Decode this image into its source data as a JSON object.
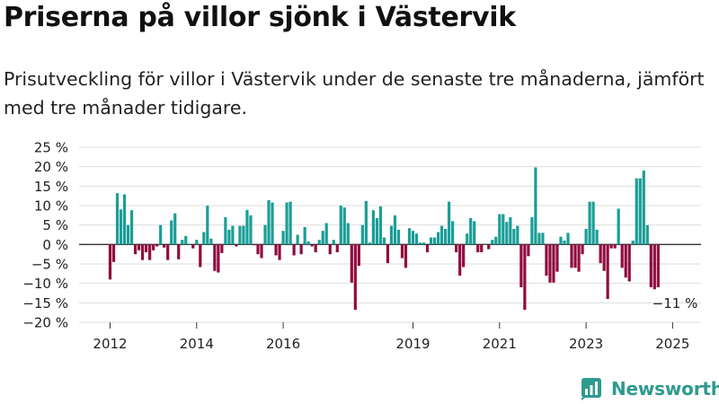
{
  "title": "Priserna på villor sjönk i Västervik",
  "subtitle": "Prisutveckling för villor i Västervik under de senaste tre månaderna, jämfört med tre månader tidigare.",
  "brand": "Newsworthy",
  "colors": {
    "positive": "#1a9e97",
    "negative": "#900c3f",
    "grid": "#dddddd",
    "zero_line": "#333333",
    "brand": "#2f9a8e"
  },
  "chart_data": {
    "type": "bar",
    "ylim": [
      -20,
      25
    ],
    "yticks": [
      25,
      20,
      15,
      10,
      5,
      0,
      -5,
      -10,
      -15,
      -20
    ],
    "ytick_labels": [
      "25 %",
      "20 %",
      "15 %",
      "10 %",
      "5 %",
      "0 %",
      "−5 %",
      "−10 %",
      "−15 %",
      "−20 %"
    ],
    "xticks": [
      2012,
      2014,
      2016,
      2019,
      2021,
      2023,
      2025
    ],
    "xtick_labels": [
      "2012",
      "2014",
      "2016",
      "2019",
      "2021",
      "2023",
      "2025"
    ],
    "grid": true,
    "start": "2012-01",
    "annotation": {
      "text": "−11 %",
      "x": "2025-01",
      "value": -11
    },
    "values": [
      -9,
      -4.5,
      13.2,
      9,
      12.9,
      5,
      8.8,
      -2.5,
      -1.5,
      -4,
      -2,
      -4,
      -1.5,
      -0.5,
      5,
      -0.8,
      -4,
      6.2,
      8,
      -3.8,
      1.2,
      2.2,
      0.2,
      -1,
      1.2,
      -5.8,
      3.2,
      10,
      1.5,
      -6.8,
      -7.2,
      -2.2,
      7,
      3.8,
      4.8,
      -0.5,
      4.8,
      4.8,
      8.9,
      7.5,
      -0.2,
      -2.5,
      -3.5,
      5,
      11.4,
      10.8,
      -2.8,
      -4,
      3.5,
      10.8,
      11,
      -2.8,
      2.5,
      -2.5,
      4.5,
      0.8,
      -0.5,
      -2,
      1.2,
      3.5,
      5.5,
      -2.5,
      1.2,
      -2,
      10,
      9.5,
      5.5,
      -9.8,
      -16.8,
      -5.5,
      5,
      11.2,
      0.5,
      8.8,
      6.8,
      9.8,
      1.8,
      -4.8,
      4.8,
      7.5,
      3.8,
      -3.5,
      -6,
      4.2,
      3.5,
      2.8,
      0.5,
      0.5,
      -2,
      1.8,
      1.8,
      3.2,
      4.8,
      4,
      11,
      6,
      -2,
      -8,
      -5.8,
      2.8,
      6.8,
      6,
      -2,
      -2,
      0.2,
      -1.2,
      1.2,
      2,
      7.8,
      7.8,
      5.8,
      7,
      4,
      4.8,
      -11,
      -16.8,
      -3,
      7,
      19.8,
      3,
      3,
      -8,
      -9.8,
      -9.8,
      -7,
      2,
      1,
      3,
      -6,
      -6,
      -7,
      -2.5,
      4,
      11,
      11,
      3.8,
      -4.8,
      -6.8,
      -14,
      -1,
      -1,
      9.2,
      -6,
      -8.5,
      -9.5,
      1,
      17,
      17,
      19,
      5,
      -11,
      -11.5,
      -11
    ]
  }
}
